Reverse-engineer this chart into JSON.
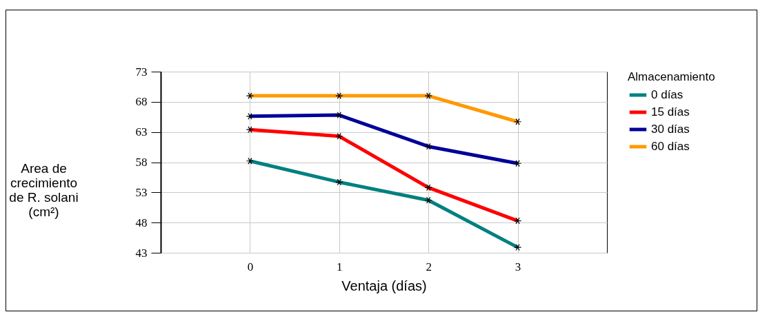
{
  "chart_data": {
    "type": "line",
    "xlabel": "Ventaja (días)",
    "ylabel": "Area de crecimiento de R. solani (cm²)",
    "legend_title": "Almacenamiento",
    "x": [
      0,
      1,
      2,
      3
    ],
    "xlim": [
      -1,
      4
    ],
    "xticks": [
      0,
      1,
      2,
      3
    ],
    "ylim": [
      43,
      73
    ],
    "yticks": [
      43,
      48,
      53,
      58,
      63,
      68,
      73
    ],
    "grid": true,
    "legend": "right",
    "marker": "cross",
    "line_style": "solid",
    "series": [
      {
        "name": "0  días",
        "color": "#008080",
        "values": [
          58.2,
          54.7,
          51.7,
          43.9
        ]
      },
      {
        "name": "15 días",
        "color": "#ff0000",
        "values": [
          63.4,
          62.3,
          53.8,
          48.3
        ]
      },
      {
        "name": "30 días",
        "color": "#000099",
        "values": [
          65.6,
          65.8,
          60.6,
          57.8
        ]
      },
      {
        "name": "60 días",
        "color": "#ff9900",
        "values": [
          69.0,
          69.0,
          69.0,
          64.7
        ]
      }
    ]
  }
}
